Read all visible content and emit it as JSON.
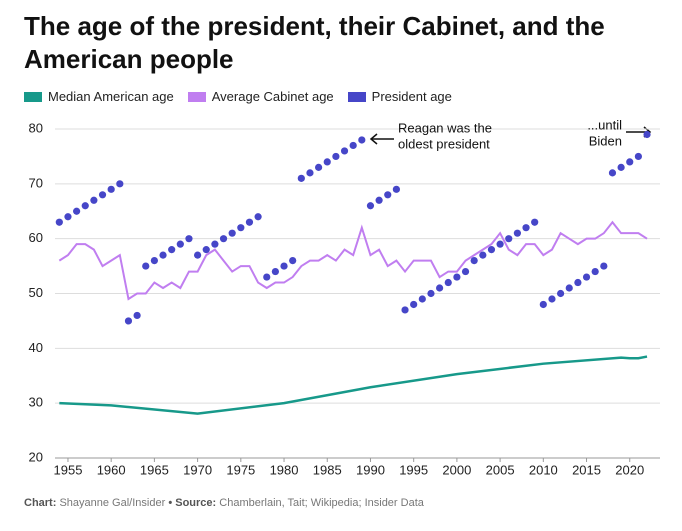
{
  "chart_data": {
    "type": "line",
    "title": "The age of the president, their Cabinet, and the American people",
    "xlim": [
      1953.5,
      2023.5
    ],
    "xticks": [
      1955,
      1960,
      1965,
      1970,
      1975,
      1980,
      1985,
      1990,
      1995,
      2000,
      2005,
      2010,
      2015,
      2020
    ],
    "ylim": [
      20,
      80
    ],
    "yticks": [
      20,
      30,
      40,
      50,
      60,
      70,
      80
    ],
    "grid": true,
    "series": [
      {
        "name": "Median American age",
        "color": "#17998a",
        "kind": "line",
        "x": [
          1954,
          1960,
          1970,
          1980,
          1990,
          2000,
          2010,
          2019,
          2020,
          2021,
          2022
        ],
        "values": [
          30,
          29.6,
          28.1,
          30,
          32.9,
          35.3,
          37.2,
          38.3,
          38.2,
          38.2,
          38.5
        ]
      },
      {
        "name": "Average Cabinet age",
        "color": "#c07ef0",
        "kind": "line",
        "x": [
          1954,
          1955,
          1956,
          1957,
          1958,
          1959,
          1960,
          1961,
          1962,
          1963,
          1964,
          1965,
          1966,
          1967,
          1968,
          1969,
          1970,
          1971,
          1972,
          1973,
          1974,
          1975,
          1976,
          1977,
          1978,
          1979,
          1980,
          1981,
          1982,
          1983,
          1984,
          1985,
          1986,
          1987,
          1988,
          1989,
          1990,
          1991,
          1992,
          1993,
          1994,
          1995,
          1996,
          1997,
          1998,
          1999,
          2000,
          2001,
          2002,
          2003,
          2004,
          2005,
          2006,
          2007,
          2008,
          2009,
          2010,
          2011,
          2012,
          2013,
          2014,
          2015,
          2016,
          2017,
          2018,
          2019,
          2020,
          2021,
          2022
        ],
        "values": [
          56,
          57,
          59,
          59,
          58,
          55,
          56,
          57,
          49,
          50,
          50,
          52,
          51,
          52,
          51,
          54,
          54,
          57,
          58,
          56,
          54,
          55,
          55,
          52,
          51,
          52,
          52,
          53,
          55,
          56,
          56,
          57,
          56,
          58,
          57,
          62,
          57,
          58,
          55,
          56,
          54,
          56,
          56,
          56,
          53,
          54,
          54,
          56,
          57,
          58,
          59,
          61,
          58,
          57,
          59,
          59,
          57,
          58,
          61,
          60,
          59,
          60,
          60,
          61,
          63,
          61,
          61,
          61,
          60
        ]
      },
      {
        "name": "President age",
        "color": "#4646c8",
        "kind": "dots",
        "x": [
          1954,
          1955,
          1956,
          1957,
          1958,
          1959,
          1960,
          1961,
          1962,
          1963,
          1964,
          1965,
          1966,
          1967,
          1968,
          1969,
          1970,
          1971,
          1972,
          1973,
          1974,
          1975,
          1976,
          1977,
          1978,
          1979,
          1980,
          1981,
          1982,
          1983,
          1984,
          1985,
          1986,
          1987,
          1988,
          1989,
          1990,
          1991,
          1992,
          1993,
          1994,
          1995,
          1996,
          1997,
          1998,
          1999,
          2000,
          2001,
          2002,
          2003,
          2004,
          2005,
          2006,
          2007,
          2008,
          2009,
          2010,
          2011,
          2012,
          2013,
          2014,
          2015,
          2016,
          2017,
          2018,
          2019,
          2020,
          2021,
          2022
        ],
        "values": [
          63,
          64,
          65,
          66,
          67,
          68,
          69,
          70,
          45,
          46,
          55,
          56,
          57,
          58,
          59,
          60,
          57,
          58,
          59,
          60,
          61,
          62,
          63,
          64,
          53,
          54,
          55,
          56,
          71,
          72,
          73,
          74,
          75,
          76,
          77,
          78,
          66,
          67,
          68,
          69,
          47,
          48,
          49,
          50,
          51,
          52,
          53,
          54,
          56,
          57,
          58,
          59,
          60,
          61,
          62,
          63,
          48,
          49,
          50,
          51,
          52,
          53,
          54,
          55,
          72,
          73,
          74,
          75,
          79
        ]
      }
    ],
    "annotations": [
      [
        "Reagan was the",
        "oldest president"
      ],
      [
        "...until",
        "Biden"
      ]
    ],
    "footer": {
      "chart_label": "Chart:",
      "chart": "Shayanne Gal/Insider",
      "separator": "•",
      "source_label": "Source:",
      "source": "Chamberlain, Tait; Wikipedia; Insider Data"
    }
  }
}
